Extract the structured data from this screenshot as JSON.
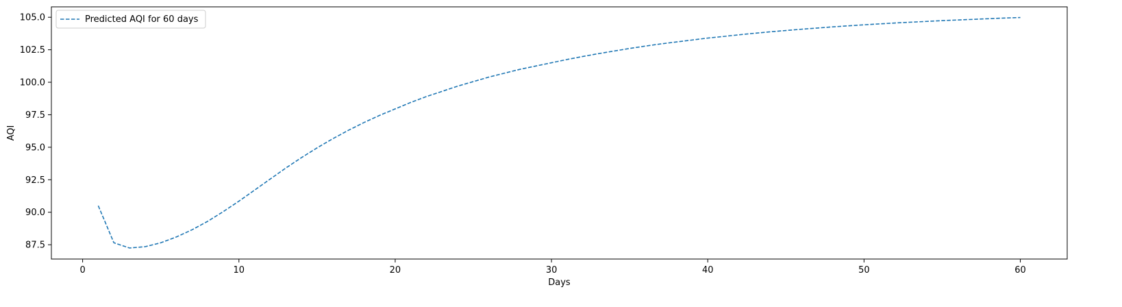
{
  "chart_data": {
    "type": "line",
    "title": "",
    "xlabel": "Days",
    "ylabel": "AQI",
    "xlim": [
      -2,
      63
    ],
    "ylim": [
      86.4,
      105.8
    ],
    "xticks": [
      0,
      10,
      20,
      30,
      40,
      50,
      60
    ],
    "xtick_labels": [
      "0",
      "10",
      "20",
      "30",
      "40",
      "50",
      "60"
    ],
    "yticks": [
      87.5,
      90.0,
      92.5,
      95.0,
      97.5,
      100.0,
      102.5,
      105.0
    ],
    "ytick_labels": [
      "87.5",
      "90.0",
      "92.5",
      "95.0",
      "97.5",
      "100.0",
      "102.5",
      "105.0"
    ],
    "grid": false,
    "legend_position": "upper-left",
    "series": [
      {
        "name": "Predicted AQI for 60 days",
        "color": "#1f77b4",
        "line_style": "dashed",
        "x": [
          1,
          2,
          3,
          4,
          5,
          6,
          7,
          8,
          9,
          10,
          11,
          12,
          13,
          14,
          15,
          16,
          17,
          18,
          19,
          20,
          21,
          22,
          23,
          24,
          25,
          26,
          27,
          28,
          29,
          30,
          31,
          32,
          33,
          34,
          35,
          36,
          37,
          38,
          39,
          40,
          41,
          42,
          43,
          44,
          45,
          46,
          47,
          48,
          49,
          50,
          51,
          52,
          53,
          54,
          55,
          56,
          57,
          58,
          59,
          60
        ],
        "values": [
          90.5,
          87.65,
          87.25,
          87.35,
          87.65,
          88.1,
          88.65,
          89.3,
          90.05,
          90.85,
          91.7,
          92.55,
          93.4,
          94.2,
          94.95,
          95.65,
          96.3,
          96.9,
          97.45,
          97.95,
          98.45,
          98.9,
          99.3,
          99.7,
          100.05,
          100.4,
          100.7,
          101.0,
          101.25,
          101.5,
          101.75,
          101.98,
          102.2,
          102.4,
          102.6,
          102.78,
          102.95,
          103.1,
          103.25,
          103.4,
          103.52,
          103.65,
          103.77,
          103.88,
          103.98,
          104.08,
          104.17,
          104.26,
          104.34,
          104.42,
          104.49,
          104.56,
          104.62,
          104.68,
          104.74,
          104.79,
          104.84,
          104.89,
          104.94,
          104.98
        ]
      }
    ]
  }
}
